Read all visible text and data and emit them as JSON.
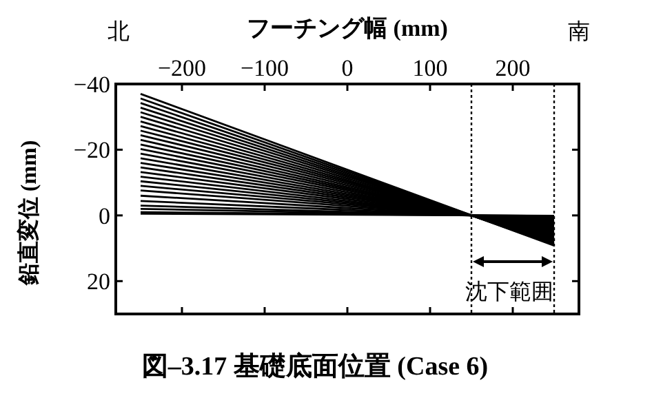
{
  "chart_data": {
    "type": "line",
    "xlabel": "フーチング幅 (mm)",
    "ylabel": "鉛直変位 (mm)",
    "x": [
      -250,
      250
    ],
    "xlim": [
      -280,
      280
    ],
    "xticks": [
      -200,
      -100,
      0,
      100,
      200
    ],
    "ylim": [
      30,
      -40
    ],
    "yticks": [
      -40,
      -20,
      0,
      20
    ],
    "grid": false,
    "marker": "none",
    "line_style": "solid",
    "ref_lines": [
      {
        "axis": "x",
        "value": 150,
        "color": "#000000",
        "line_style": "dotted"
      },
      {
        "axis": "x",
        "value": 250,
        "color": "#000000",
        "line_style": "dotted"
      }
    ],
    "annotations": [
      "北",
      "南",
      "図–3.17 基礎底面位置 (Case 6)",
      "沈下範囲"
    ],
    "series": [
      {
        "color": "#000000",
        "values": [
          -37,
          9.2
        ]
      },
      {
        "color": "#000000",
        "values": [
          -35.6,
          8.9
        ]
      },
      {
        "color": "#000000",
        "values": [
          -34.2,
          8.6
        ]
      },
      {
        "color": "#000000",
        "values": [
          -32.8,
          8.2
        ]
      },
      {
        "color": "#000000",
        "values": [
          -31.4,
          7.8
        ]
      },
      {
        "color": "#000000",
        "values": [
          -30,
          7.5
        ]
      },
      {
        "color": "#000000",
        "values": [
          -28.6,
          7.2
        ]
      },
      {
        "color": "#000000",
        "values": [
          -27.2,
          6.8
        ]
      },
      {
        "color": "#000000",
        "values": [
          -25.8,
          6.4
        ]
      },
      {
        "color": "#000000",
        "values": [
          -24.4,
          6.1
        ]
      },
      {
        "color": "#000000",
        "values": [
          -23,
          5.8
        ]
      },
      {
        "color": "#000000",
        "values": [
          -21.6,
          5.4
        ]
      },
      {
        "color": "#000000",
        "values": [
          -20.2,
          5
        ]
      },
      {
        "color": "#000000",
        "values": [
          -18.8,
          4.7
        ]
      },
      {
        "color": "#000000",
        "values": [
          -17.4,
          4.4
        ]
      },
      {
        "color": "#000000",
        "values": [
          -16,
          4
        ]
      },
      {
        "color": "#000000",
        "values": [
          -14.6,
          3.6
        ]
      },
      {
        "color": "#000000",
        "values": [
          -13.2,
          3.3
        ]
      },
      {
        "color": "#000000",
        "values": [
          -11.8,
          3
        ]
      },
      {
        "color": "#000000",
        "values": [
          -10.4,
          2.6
        ]
      },
      {
        "color": "#000000",
        "values": [
          -9,
          2.2
        ]
      },
      {
        "color": "#000000",
        "values": [
          -7.6,
          1.9
        ]
      },
      {
        "color": "#000000",
        "values": [
          -6,
          1.5
        ]
      },
      {
        "color": "#000000",
        "values": [
          -4.4,
          1.1
        ]
      },
      {
        "color": "#000000",
        "values": [
          -3,
          0.8
        ]
      },
      {
        "color": "#000000",
        "values": [
          -2,
          0.5
        ]
      },
      {
        "color": "#000000",
        "values": [
          -1,
          0.2
        ]
      },
      {
        "color": "#000000",
        "values": [
          -0.5,
          0.1
        ]
      }
    ]
  }
}
